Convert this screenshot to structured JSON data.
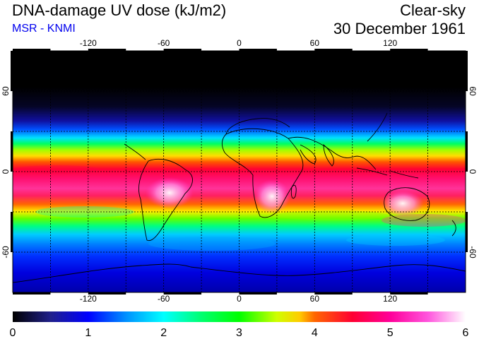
{
  "header": {
    "title": "DNA-damage UV dose (kJ/m2)",
    "source": "MSR - KNMI",
    "condition": "Clear-sky",
    "date": "30 December 1961"
  },
  "map": {
    "projection": "equirectangular",
    "lon_range": [
      -180,
      180
    ],
    "lat_range": [
      -90,
      90
    ],
    "lon_ticks": [
      -120,
      -60,
      0,
      60,
      120
    ],
    "lon_tick_labels": [
      "-120",
      "-60",
      "0",
      "60",
      "120"
    ],
    "lat_ticks": [
      60,
      0,
      -60
    ],
    "lat_tick_labels": [
      "60",
      "0",
      "-60"
    ]
  },
  "colorbar": {
    "min": 0,
    "max": 6,
    "tick_labels": [
      "0",
      "1",
      "2",
      "3",
      "4",
      "5",
      "6"
    ],
    "stops": [
      {
        "value": 0.0,
        "color": "#000000"
      },
      {
        "value": 0.5,
        "color": "#20208a"
      },
      {
        "value": 1.0,
        "color": "#0000ff"
      },
      {
        "value": 1.5,
        "color": "#0090ff"
      },
      {
        "value": 2.0,
        "color": "#00ffff"
      },
      {
        "value": 2.5,
        "color": "#00ff70"
      },
      {
        "value": 3.0,
        "color": "#00ff00"
      },
      {
        "value": 3.5,
        "color": "#d0ff00"
      },
      {
        "value": 3.8,
        "color": "#ffcc00"
      },
      {
        "value": 4.0,
        "color": "#ff6600"
      },
      {
        "value": 4.5,
        "color": "#ff0033"
      },
      {
        "value": 5.0,
        "color": "#ff0099"
      },
      {
        "value": 5.5,
        "color": "#ff55dd"
      },
      {
        "value": 6.0,
        "color": "#ffffff"
      }
    ]
  }
}
